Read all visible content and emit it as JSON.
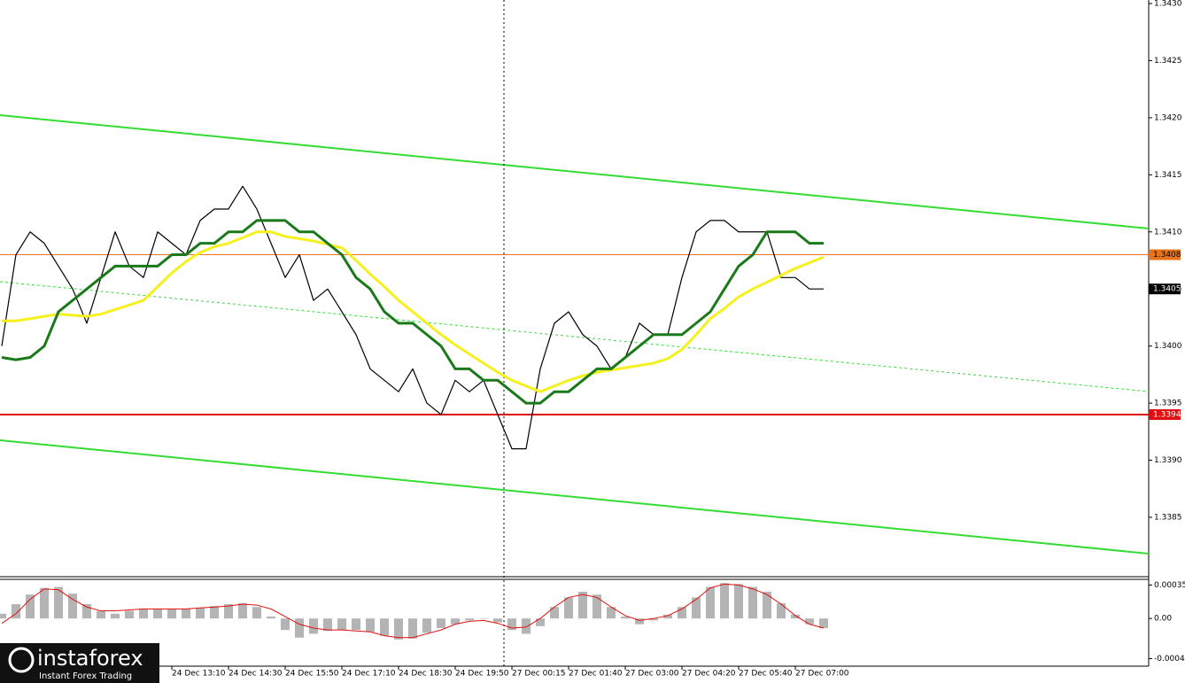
{
  "chart_data": [
    {
      "type": "line",
      "categories": [
        null,
        null,
        null,
        null,
        null,
        null,
        null,
        null,
        null,
        null,
        null,
        null,
        "24 Dec 13:10",
        null,
        null,
        null,
        "24 Dec 14:30",
        null,
        null,
        null,
        "24 Dec 15:50",
        null,
        null,
        null,
        "24 Dec 17:10",
        null,
        null,
        null,
        "24 Dec 18:30",
        null,
        null,
        null,
        "24 Dec 19:50",
        null,
        null,
        null,
        "27 Dec 00:15",
        null,
        null,
        null,
        "27 Dec 01:40",
        null,
        null,
        null,
        "27 Dec 03:00",
        null,
        null,
        null,
        "27 Dec 04:20",
        null,
        null,
        null,
        "27 Dec 05:40",
        null,
        null,
        null,
        "27 Dec 07:00",
        null,
        null
      ],
      "ylim": [
        1.338,
        1.343
      ],
      "yticks": [
        1.3385,
        {
          "value": 1.339,
          "label": "1.3390"
        },
        1.3395,
        {
          "value": 1.34,
          "label": "1.3400"
        },
        1.3405,
        {
          "value": 1.341,
          "label": "1.3410"
        },
        1.3415,
        {
          "value": 1.342,
          "label": "1.3420"
        },
        1.3425,
        {
          "value": 1.343,
          "label": "1.3430"
        }
      ],
      "levels": [
        {
          "value": 1.3408,
          "color": "#e8731a",
          "text_color": "#000000"
        },
        {
          "value": 1.3405,
          "color": "#000000",
          "text_color": "#ffffff"
        },
        {
          "value": 1.3394,
          "color": "#e01010",
          "text_color": "#ffffff"
        }
      ],
      "series": [
        {
          "color": "#000000",
          "width": 1.2,
          "values": [
            1.34,
            1.3408,
            1.341,
            1.3409,
            1.3407,
            1.3405,
            1.3402,
            1.3406,
            1.341,
            1.3407,
            1.3406,
            1.341,
            1.3409,
            1.3408,
            1.3411,
            1.3412,
            1.3412,
            1.3414,
            1.3412,
            1.3409,
            1.3406,
            1.3408,
            1.3404,
            1.3405,
            1.3403,
            1.3401,
            1.3398,
            1.3397,
            1.3396,
            1.3398,
            1.3395,
            1.3394,
            1.3397,
            1.3396,
            1.3397,
            1.3394,
            1.3391,
            1.3391,
            1.3398,
            1.3402,
            1.3403,
            1.3401,
            1.34,
            1.3398,
            1.3399,
            1.3402,
            1.3401,
            1.3401,
            1.3406,
            1.341,
            1.3411,
            1.3411,
            1.341,
            1.341,
            1.341,
            1.3406,
            1.3406,
            1.3405,
            1.3405
          ]
        },
        {
          "color": "#f5f01e",
          "width": 3,
          "values": [
            1.34022,
            1.34022,
            1.34024,
            1.34026,
            1.34028,
            1.34027,
            1.34026,
            1.34028,
            1.34032,
            1.34036,
            1.3404,
            1.34052,
            1.34064,
            1.34074,
            1.34082,
            1.34087,
            1.3409,
            1.34095,
            1.341,
            1.341,
            1.34096,
            1.34094,
            1.34092,
            1.34089,
            1.34086,
            1.34075,
            1.34063,
            1.34052,
            1.3404,
            1.3403,
            1.3402,
            1.3401,
            1.34001,
            1.33993,
            1.33985,
            1.33977,
            1.3397,
            1.33965,
            1.3396,
            1.33965,
            1.3397,
            1.33974,
            1.33977,
            1.33979,
            1.33981,
            1.33983,
            1.33985,
            1.33989,
            1.33997,
            1.3401,
            1.34024,
            1.34033,
            1.34043,
            1.3405,
            1.34056,
            1.34062,
            1.34068,
            1.34073,
            1.34078
          ]
        },
        {
          "color": "#1a7a1a",
          "width": 3,
          "values": [
            1.3399,
            1.33988,
            1.3399,
            1.34,
            1.3403,
            1.3404,
            1.3405,
            1.3406,
            1.3407,
            1.3407,
            1.3407,
            1.3407,
            1.3408,
            1.3408,
            1.3409,
            1.3409,
            1.341,
            1.341,
            1.3411,
            1.3411,
            1.3411,
            1.341,
            1.341,
            1.3409,
            1.3408,
            1.3406,
            1.3405,
            1.3403,
            1.3402,
            1.3402,
            1.3401,
            1.34,
            1.3398,
            1.3398,
            1.3397,
            1.3397,
            1.3396,
            1.3395,
            1.3395,
            1.3396,
            1.3396,
            1.3397,
            1.3398,
            1.3398,
            1.3399,
            1.34,
            1.3401,
            1.3401,
            1.3401,
            1.3402,
            1.3403,
            1.3405,
            1.3407,
            1.3408,
            1.341,
            1.341,
            1.341,
            1.3409,
            1.3409
          ]
        }
      ]
    },
    {
      "type": "macd",
      "ylim": [
        -0.00048,
        0.0004
      ],
      "yticks": [
        0.00035,
        {
          "value": 0,
          "label": "0.00"
        },
        -0.00042
      ],
      "histogram": {
        "color": "#b4b4b4",
        "values": [
          5e-05,
          0.00015,
          0.00025,
          0.00032,
          0.00033,
          0.00026,
          0.00015,
          8e-05,
          5e-05,
          8e-05,
          0.0001,
          0.0001,
          0.0001,
          0.0001,
          0.00011,
          0.00013,
          0.00015,
          0.00016,
          0.00012,
          2e-05,
          -0.00012,
          -0.0002,
          -0.00016,
          -0.00013,
          -0.00012,
          -0.00012,
          -0.00014,
          -0.00018,
          -0.00022,
          -0.00021,
          -0.00015,
          -0.0001,
          -6e-05,
          -2e-05,
          0,
          -4e-05,
          -0.00012,
          -0.00016,
          -8e-05,
          0.00012,
          0.00022,
          0.00028,
          0.00025,
          0.00012,
          2e-05,
          -6e-05,
          -2e-05,
          4e-05,
          0.00012,
          0.00022,
          0.00033,
          0.00037,
          0.00036,
          0.00033,
          0.00028,
          0.00016,
          4e-05,
          -6e-05,
          -0.0001
        ]
      },
      "signal": {
        "color": "#e01010",
        "values": [
          -5e-05,
          5e-05,
          0.0002,
          0.00031,
          0.0003,
          0.0002,
          0.00012,
          8e-05,
          8e-05,
          9e-05,
          0.0001,
          0.0001,
          0.0001,
          0.0001,
          0.00011,
          0.00012,
          0.00013,
          0.00015,
          0.00014,
          0.0001,
          2e-05,
          -6e-05,
          -0.0001,
          -0.00012,
          -0.00012,
          -0.00013,
          -0.00014,
          -0.00018,
          -0.0002,
          -0.0002,
          -0.00016,
          -0.00012,
          -6e-05,
          -3e-05,
          -2e-05,
          -5e-05,
          -0.0001,
          -9e-05,
          0,
          0.00012,
          0.00022,
          0.00025,
          0.00022,
          0.00012,
          3e-05,
          -2e-05,
          0,
          3e-05,
          0.0001,
          0.0002,
          0.00032,
          0.00036,
          0.00035,
          0.00031,
          0.00025,
          0.00015,
          3e-05,
          -6e-05,
          -0.0001
        ]
      }
    }
  ],
  "logo": {
    "name": "instaforex",
    "tagline": "Instant Forex Trading"
  }
}
